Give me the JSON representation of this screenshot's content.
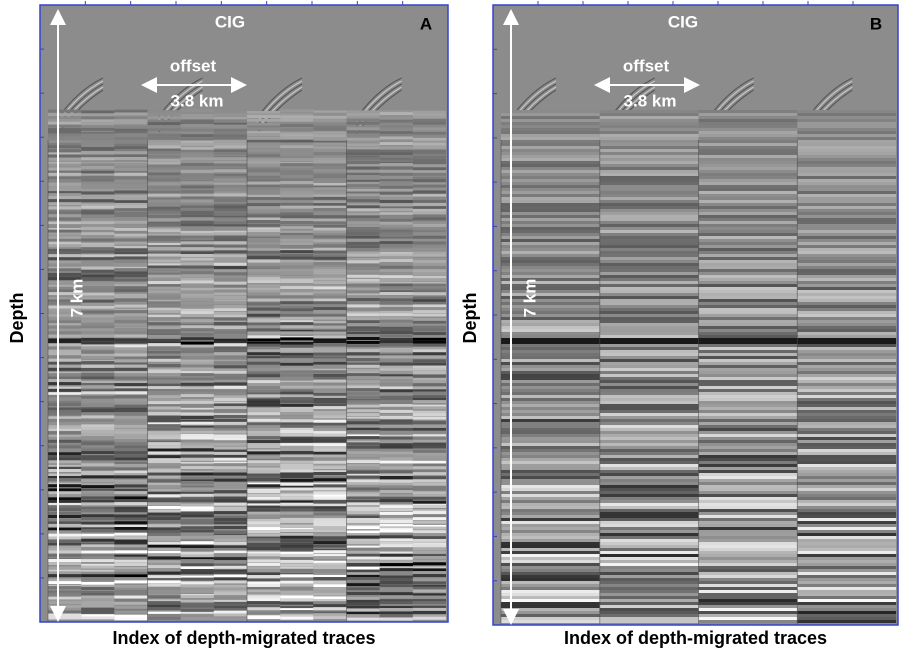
{
  "panels": [
    {
      "letter": "A",
      "title": "CIG",
      "offset_label": "offset",
      "offset_value": "3.8 km",
      "depth_scale": "7 km",
      "y_label": "Depth",
      "x_label": "Index of depth-migrated traces"
    },
    {
      "letter": "B",
      "title": "CIG",
      "offset_label": "offset",
      "offset_value": "3.8 km",
      "depth_scale": "7 km",
      "y_label": "Depth",
      "x_label": "Index of depth-migrated traces"
    }
  ]
}
